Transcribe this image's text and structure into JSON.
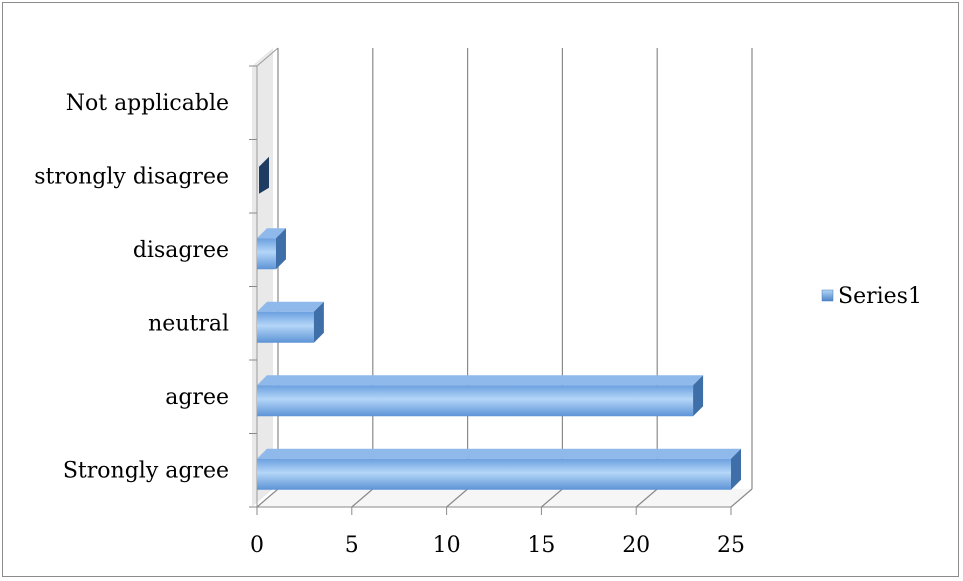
{
  "chart_data": {
    "type": "bar",
    "orientation": "horizontal",
    "style": "3d-clustered-bar",
    "title": "",
    "xlabel": "",
    "ylabel": "",
    "categories": [
      "Strongly agree",
      "agree",
      "neutral",
      "disagree",
      "strongly disagree",
      "Not applicable"
    ],
    "series": [
      {
        "name": "Series1",
        "values": [
          25,
          23,
          3,
          1,
          0,
          0
        ]
      }
    ],
    "xlim": [
      0,
      25
    ],
    "xticks": [
      "0",
      "5",
      "10",
      "15",
      "20",
      "25"
    ],
    "grid": true,
    "legend": {
      "position": "right"
    },
    "colors": {
      "bar_front_light": "#a9cdf5",
      "bar_front_dark": "#5f95d8",
      "bar_top": "#8fb9ea",
      "bar_side": "#3f6fa8",
      "zero_bar": "#1f3d63",
      "gridline": "#8a8a8a",
      "wall_shadow": "#c8c8c8"
    }
  }
}
